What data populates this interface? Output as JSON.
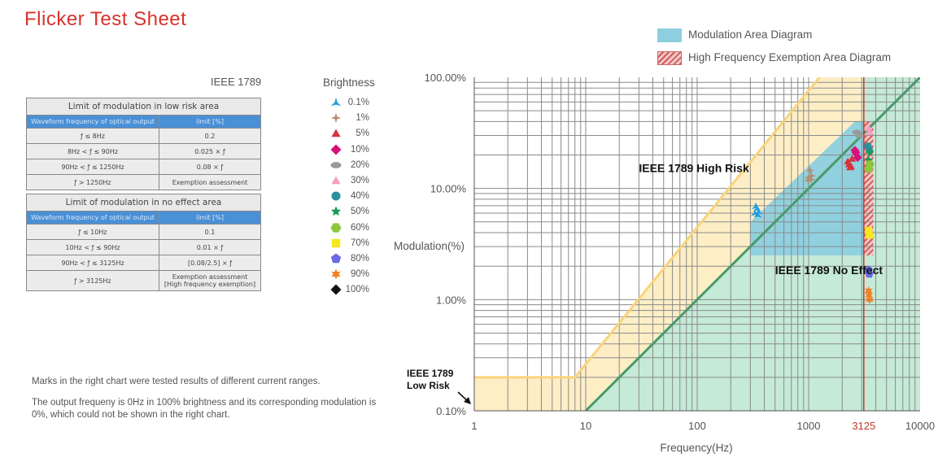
{
  "page": {
    "title": "Flicker Test Sheet"
  },
  "standard_label": "IEEE 1789",
  "tables": [
    {
      "caption": "Limit of modulation in low risk area",
      "header": [
        "Waveform frequency of optical output",
        "limit [%]"
      ],
      "rows": [
        [
          "ƒ ≤ 8Hz",
          "0.2"
        ],
        [
          "8Hz < ƒ ≤ 90Hz",
          "0.025 × ƒ"
        ],
        [
          "90Hz < ƒ ≤ 1250Hz",
          "0.08 × ƒ"
        ],
        [
          "ƒ > 1250Hz",
          "Exemption assessment"
        ]
      ]
    },
    {
      "caption": "Limit of modulation in no effect area",
      "header": [
        "Waveform frequency of optical output",
        "limit [%]"
      ],
      "rows": [
        [
          "ƒ ≤ 10Hz",
          "0.1"
        ],
        [
          "10Hz < ƒ ≤ 90Hz",
          "0.01 × ƒ"
        ],
        [
          "90Hz < ƒ ≤ 3125Hz",
          "[0.08/2.5] × ƒ"
        ],
        [
          "ƒ > 3125Hz",
          "Exemption assessment\n[High frequency exemption]"
        ]
      ]
    }
  ],
  "brightness_legend": {
    "title": "Brightness",
    "items": [
      {
        "label": "0.1%",
        "marker": "tri-spike",
        "color": "#1e9de0"
      },
      {
        "label": "1%",
        "marker": "four-star",
        "color": "#b58a6e"
      },
      {
        "label": "5%",
        "marker": "triangle",
        "color": "#d8323c"
      },
      {
        "label": "10%",
        "marker": "diamond",
        "color": "#d6127a"
      },
      {
        "label": "20%",
        "marker": "ellipse",
        "color": "#9a9a9a"
      },
      {
        "label": "30%",
        "marker": "triangle",
        "color": "#f4a0c0"
      },
      {
        "label": "40%",
        "marker": "circle",
        "color": "#2a8fa0"
      },
      {
        "label": "50%",
        "marker": "five-star",
        "color": "#1a9a55"
      },
      {
        "label": "60%",
        "marker": "hexagon",
        "color": "#8cc63e"
      },
      {
        "label": "70%",
        "marker": "square",
        "color": "#f7e81c"
      },
      {
        "label": "80%",
        "marker": "pentagon",
        "color": "#6a6ae6"
      },
      {
        "label": "90%",
        "marker": "six-star",
        "color": "#f08020"
      },
      {
        "label": "100%",
        "marker": "diamond",
        "color": "#111111"
      }
    ]
  },
  "notes": [
    "Marks in the right chart were tested results of different current ranges.",
    "The output frequeny is 0Hz in 100% brightness and its corresponding modulation is 0%, which could not be shown in the right chart."
  ],
  "chart_legend": [
    {
      "label": "Modulation Area Diagram",
      "color": "#8dcfdf"
    },
    {
      "label": "High Frequency Exemption Area Diagram",
      "color": "#d05a5a"
    }
  ],
  "chart_data": {
    "type": "scatter",
    "xlabel": "Frequency(Hz)",
    "ylabel": "Modulation(%)",
    "xscale": "log",
    "yscale": "log",
    "xlim": [
      1,
      10000
    ],
    "ylim": [
      0.1,
      100
    ],
    "x_ticks": [
      {
        "value": 1,
        "label": "1"
      },
      {
        "value": 10,
        "label": "10"
      },
      {
        "value": 100,
        "label": "100"
      },
      {
        "value": 1000,
        "label": "1000"
      },
      {
        "value": 3125,
        "label": "3125",
        "color": "#c0392b"
      },
      {
        "value": 10000,
        "label": "10000"
      }
    ],
    "y_ticks": [
      {
        "value": 0.1,
        "label": "0.10%"
      },
      {
        "value": 1,
        "label": "1.00%"
      },
      {
        "value": 10,
        "label": "10.00%"
      },
      {
        "value": 100,
        "label": "100.00%"
      }
    ],
    "grid": true,
    "region_labels": [
      {
        "text": "IEEE 1789 High Risk",
        "x": 30,
        "y": 14
      },
      {
        "text": "IEEE 1789 No Effect",
        "x": 500,
        "y": 1.7
      },
      {
        "text": "IEEE 1789\nLow Risk",
        "x": 0.3,
        "y": 0.2
      }
    ],
    "low_risk_limit": [
      [
        1,
        0.2
      ],
      [
        8,
        0.2
      ],
      [
        1250,
        100
      ]
    ],
    "no_effect_limit": [
      [
        10,
        0.1
      ],
      [
        10000,
        100
      ]
    ],
    "high_frequency_exemption_line": 3125,
    "modulation_area": [
      [
        300,
        5
      ],
      [
        300,
        2.5
      ],
      [
        3125,
        2.5
      ],
      [
        3125,
        40
      ],
      [
        2600,
        40
      ]
    ],
    "exemption_area": {
      "x": [
        3125,
        3800
      ],
      "y": [
        2.5,
        40
      ]
    },
    "series": [
      {
        "brightness": "0.1%",
        "points": [
          [
            330,
            6.0
          ],
          [
            345,
            6.6
          ],
          [
            355,
            6.2
          ],
          [
            335,
            6.9
          ],
          [
            350,
            5.8
          ]
        ]
      },
      {
        "brightness": "1%",
        "points": [
          [
            1000,
            12.5
          ],
          [
            1030,
            14.5
          ],
          [
            1060,
            13.0
          ],
          [
            990,
            11.8
          ],
          [
            1050,
            12.0
          ]
        ]
      },
      {
        "brightness": "5%",
        "points": [
          [
            2250,
            17.5
          ],
          [
            2350,
            15.5
          ],
          [
            2450,
            18.5
          ],
          [
            2300,
            16.5
          ],
          [
            2400,
            15.8
          ]
        ]
      },
      {
        "brightness": "10%",
        "points": [
          [
            2600,
            22
          ],
          [
            2750,
            19
          ],
          [
            2650,
            21
          ]
        ]
      },
      {
        "brightness": "20%",
        "points": [
          [
            2700,
            32
          ],
          [
            2850,
            30
          ]
        ]
      },
      {
        "brightness": "30%",
        "points": [
          [
            3450,
            35
          ],
          [
            3500,
            32
          ]
        ]
      },
      {
        "brightness": "40%",
        "points": [
          [
            3400,
            24
          ],
          [
            3500,
            22
          ]
        ]
      },
      {
        "brightness": "50%",
        "points": [
          [
            3450,
            18
          ],
          [
            3550,
            21
          ]
        ]
      },
      {
        "brightness": "60%",
        "points": [
          [
            3450,
            15
          ],
          [
            3550,
            16.5
          ]
        ]
      },
      {
        "brightness": "70%",
        "points": [
          [
            3450,
            4.2
          ],
          [
            3500,
            3.8
          ]
        ]
      },
      {
        "brightness": "80%",
        "points": [
          [
            3450,
            1.85
          ],
          [
            3500,
            1.7
          ]
        ]
      },
      {
        "brightness": "90%",
        "points": [
          [
            3450,
            1.2
          ],
          [
            3520,
            1.0
          ],
          [
            3480,
            1.1
          ]
        ]
      }
    ]
  }
}
